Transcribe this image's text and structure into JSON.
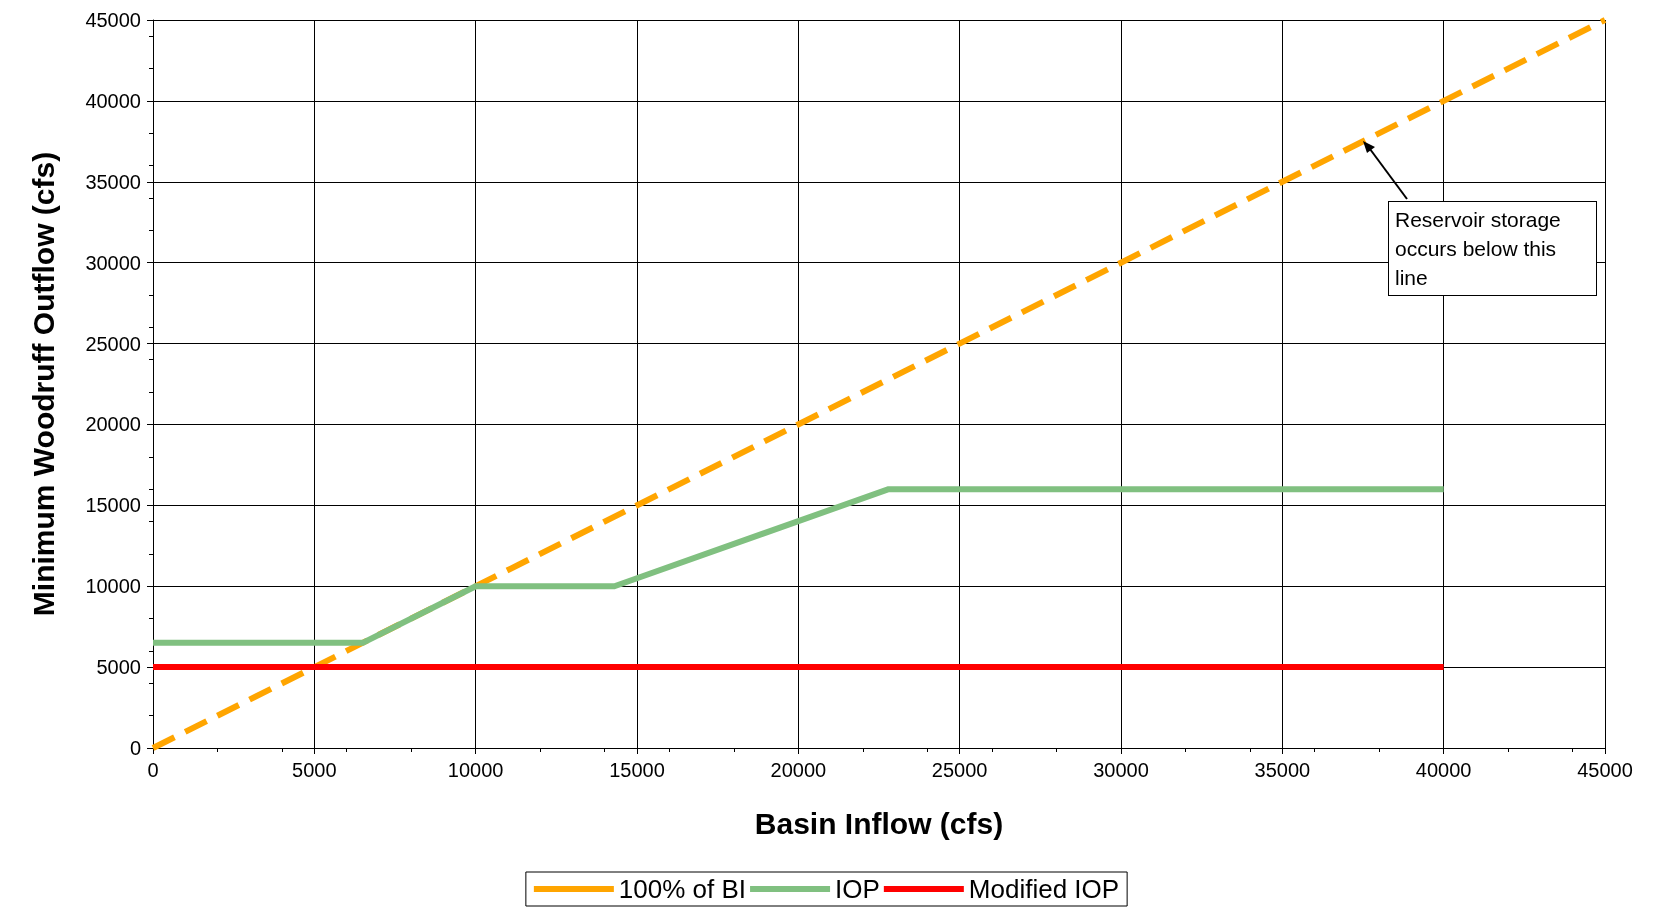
{
  "chart_data": {
    "type": "line",
    "xlabel": "Basin Inflow (cfs)",
    "ylabel": "Minimum Woodruff Outflow (cfs)",
    "xlim": [
      0,
      45000
    ],
    "xticks": [
      0,
      5000,
      10000,
      15000,
      20000,
      25000,
      30000,
      35000,
      40000,
      45000
    ],
    "ylim": [
      0,
      45000
    ],
    "yticks": [
      0,
      5000,
      10000,
      15000,
      20000,
      25000,
      30000,
      35000,
      40000,
      45000
    ],
    "grid": true,
    "legend": "bottom",
    "marker": "none",
    "series": [
      {
        "name": "100% of BI",
        "color": "#ffa500",
        "line_style": "dashed",
        "x": [
          0,
          45000
        ],
        "values": [
          0,
          45000
        ]
      },
      {
        "name": "IOP",
        "color": "#80c080",
        "line_style": "solid",
        "x": [
          0,
          6500,
          10000,
          14300,
          22800,
          40000
        ],
        "values": [
          6500,
          6500,
          10000,
          10000,
          16000,
          16000
        ]
      },
      {
        "name": "Modified IOP",
        "color": "#ff0000",
        "line_style": "solid",
        "x": [
          0,
          40000
        ],
        "values": [
          5000,
          5000
        ]
      }
    ],
    "annotations": [
      {
        "text": "Reservoir storage occurs below this line",
        "x": 37500,
        "y": 37500
      }
    ]
  }
}
